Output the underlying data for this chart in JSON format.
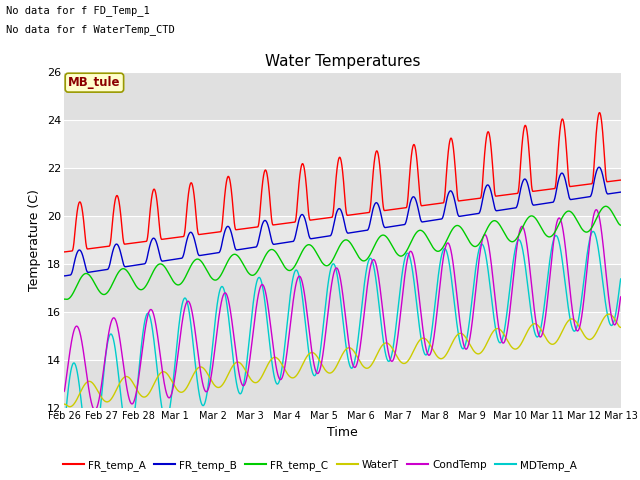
{
  "title": "Water Temperatures",
  "xlabel": "Time",
  "ylabel": "Temperature (C)",
  "ylim": [
    12,
    26
  ],
  "xlim": [
    0,
    360
  ],
  "background_color": "#ffffff",
  "plot_bg_color": "#e8e8e8",
  "grid_color": "#ffffff",
  "annotations": [
    "No data for f FD_Temp_1",
    "No data for f WaterTemp_CTD"
  ],
  "mb_tule_label": "MB_tule",
  "xtick_labels": [
    "Feb 26",
    "Feb 27",
    "Feb 28",
    "Mar 1",
    "Mar 2",
    "Mar 3",
    "Mar 4",
    "Mar 5",
    "Mar 6",
    "Mar 7",
    "Mar 8",
    "Mar 9",
    "Mar 10",
    "Mar 11",
    "Mar 12",
    "Mar 13"
  ],
  "xtick_positions": [
    0,
    24,
    48,
    72,
    96,
    120,
    144,
    168,
    192,
    216,
    240,
    264,
    288,
    312,
    336,
    360
  ],
  "ytick_labels": [
    "12",
    "14",
    "16",
    "18",
    "20",
    "22",
    "24",
    "26"
  ],
  "ytick_positions": [
    12,
    14,
    16,
    18,
    20,
    22,
    24,
    26
  ],
  "legend_entries": [
    "FR_temp_A",
    "FR_temp_B",
    "FR_temp_C",
    "WaterT",
    "CondTemp",
    "MDTemp_A"
  ],
  "legend_colors": [
    "#ff0000",
    "#0000cc",
    "#00cc00",
    "#cccc00",
    "#cc00cc",
    "#00cccc"
  ]
}
